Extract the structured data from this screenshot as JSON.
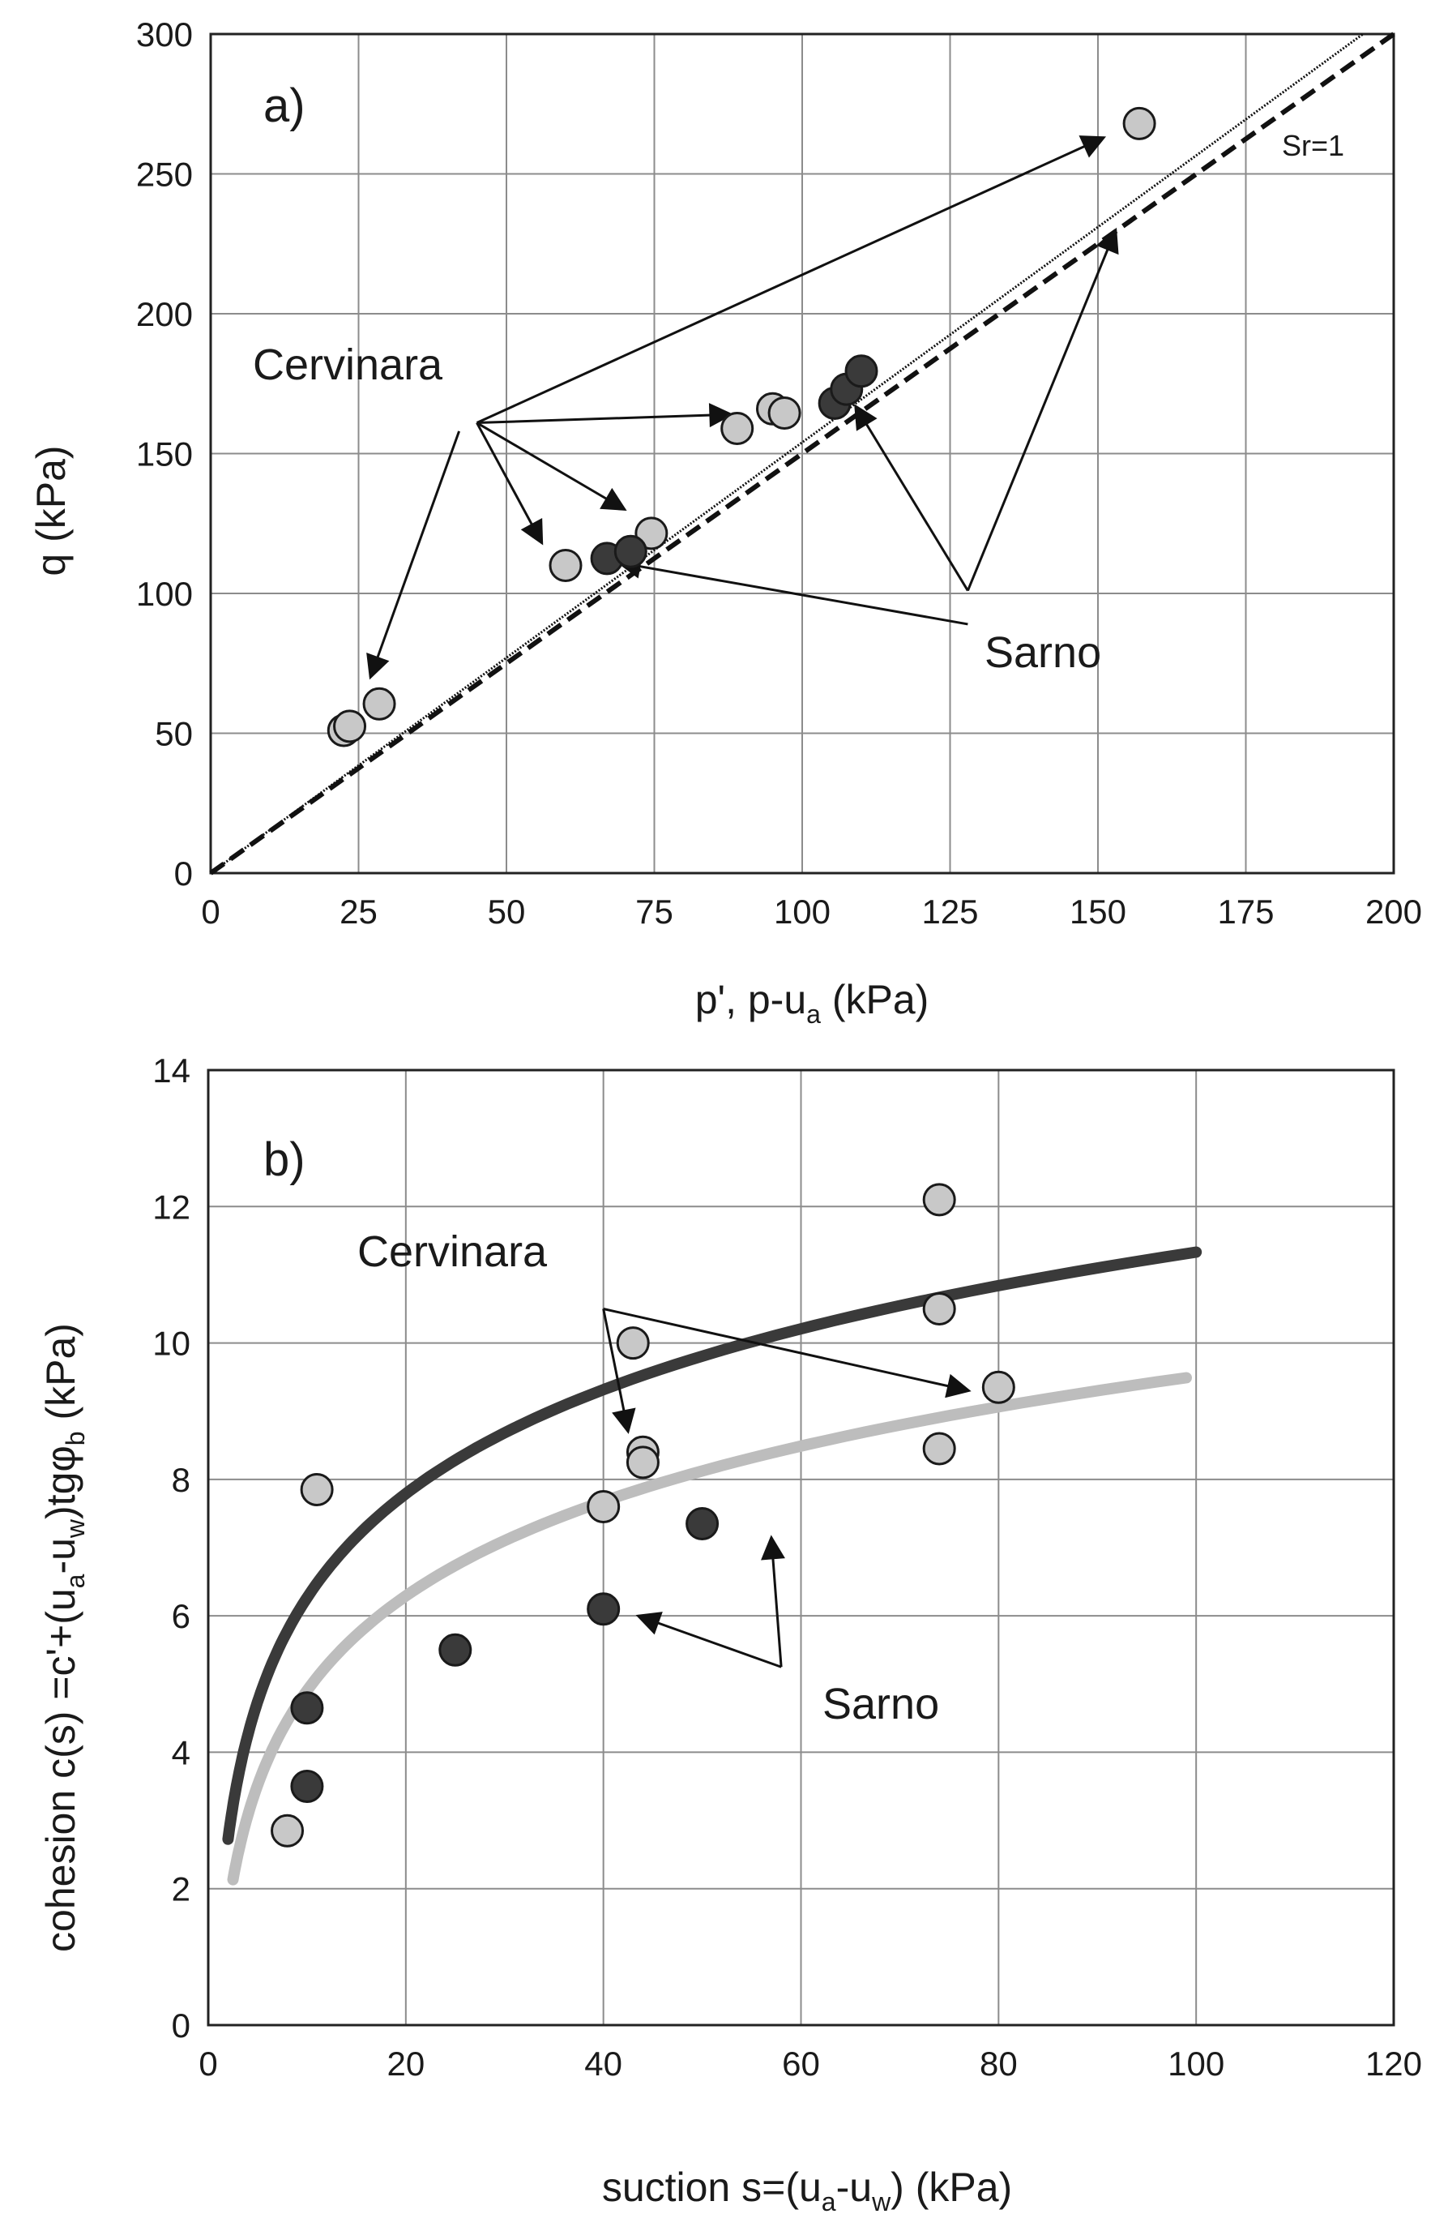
{
  "chart_data": [
    {
      "type": "scatter",
      "panel": "a)",
      "xlabel_main": "p', p-u",
      "xlabel_sub": "a",
      "xlabel_tail": " (kPa)",
      "ylabel": "q (kPa)",
      "xlim": [
        0,
        200
      ],
      "ylim": [
        0,
        300
      ],
      "xticks": [
        0,
        25,
        50,
        75,
        100,
        125,
        150,
        175,
        200
      ],
      "yticks": [
        0,
        50,
        100,
        150,
        200,
        250,
        300
      ],
      "grid": true,
      "series": [
        {
          "name": "Cervinara",
          "color": "#c8c8c8",
          "points": [
            [
              22.5,
              51
            ],
            [
              23.5,
              52.5
            ],
            [
              28.5,
              60.5
            ],
            [
              60,
              110
            ],
            [
              74.5,
              121.5
            ],
            [
              89,
              159
            ],
            [
              95,
              166
            ],
            [
              97,
              164.5
            ],
            [
              157,
              268
            ]
          ]
        },
        {
          "name": "Sarno",
          "color": "#3a3a3a",
          "points": [
            [
              67,
              112.5
            ],
            [
              71,
              115
            ],
            [
              105.5,
              168
            ],
            [
              107.5,
              173
            ],
            [
              110,
              179.5
            ]
          ]
        }
      ],
      "lines": [
        {
          "name": "solid-fit",
          "style": "dotted-thin",
          "x": [
            0,
            200
          ],
          "y": [
            0,
            308
          ]
        },
        {
          "name": "Sr=1",
          "style": "dashed",
          "x": [
            0,
            200
          ],
          "y": [
            0,
            300
          ]
        }
      ],
      "annotations": {
        "cervinara": "Cervinara",
        "sarno": "Sarno",
        "sr": "Sr=1"
      },
      "arrows": [
        {
          "from": [
            45,
            161
          ],
          "to": [
            151,
            263
          ]
        },
        {
          "from": [
            45,
            161
          ],
          "to": [
            88,
            164
          ]
        },
        {
          "from": [
            45,
            161
          ],
          "to": [
            70,
            130
          ]
        },
        {
          "from": [
            45,
            161
          ],
          "to": [
            56,
            118
          ]
        },
        {
          "from": [
            42,
            158
          ],
          "to": [
            27,
            70
          ]
        },
        {
          "from": [
            128,
            101
          ],
          "to": [
            109,
            167
          ]
        },
        {
          "from": [
            128,
            101
          ],
          "to": [
            153,
            230
          ]
        },
        {
          "from": [
            128,
            89
          ],
          "to": [
            69,
            111
          ]
        }
      ]
    },
    {
      "type": "scatter",
      "panel": "b)",
      "xlabel_main": "suction s=(u",
      "xlabel_sub1": "a",
      "xlabel_mid": "-u",
      "xlabel_sub2": "w",
      "xlabel_tail": ") (kPa)",
      "ylabel_parts": [
        "cohesion c(s)  =c'+(u",
        "a",
        "-u",
        "w",
        ")tgφ",
        "b",
        " (kPa)"
      ],
      "xlim": [
        0,
        120
      ],
      "ylim": [
        0,
        14
      ],
      "xticks": [
        0,
        20,
        40,
        60,
        80,
        100,
        120
      ],
      "yticks": [
        0,
        2,
        4,
        6,
        8,
        10,
        12,
        14
      ],
      "grid": true,
      "series": [
        {
          "name": "Cervinara",
          "color": "#c8c8c8",
          "points": [
            [
              8,
              2.85
            ],
            [
              11,
              7.85
            ],
            [
              40,
              7.6
            ],
            [
              43,
              10
            ],
            [
              44,
              8.4
            ],
            [
              44,
              8.25
            ],
            [
              74,
              12.1
            ],
            [
              74,
              10.5
            ],
            [
              74,
              8.45
            ],
            [
              80,
              9.35
            ]
          ]
        },
        {
          "name": "Sarno",
          "color": "#3a3a3a",
          "points": [
            [
              10,
              3.5
            ],
            [
              10,
              4.65
            ],
            [
              25,
              5.5
            ],
            [
              40,
              6.1
            ],
            [
              50,
              7.35
            ]
          ]
        }
      ],
      "curves": [
        {
          "name": "Cervinara-fit",
          "color": "#3a3a3a",
          "a": 1.2,
          "b": 2.2,
          "x0": 2,
          "x1": 100
        },
        {
          "name": "Sarno-fit",
          "color": "#bdbdbd",
          "a": 0.3,
          "b": 2.0,
          "x0": 2.5,
          "x1": 99
        }
      ],
      "annotations": {
        "cervinara": "Cervinara",
        "sarno": "Sarno"
      },
      "arrows": [
        {
          "from": [
            40,
            10.5
          ],
          "to": [
            42.5,
            8.7
          ]
        },
        {
          "from": [
            40,
            10.5
          ],
          "to": [
            77,
            9.3
          ]
        },
        {
          "from": [
            58,
            5.25
          ],
          "to": [
            43.5,
            6.0
          ]
        },
        {
          "from": [
            58,
            5.25
          ],
          "to": [
            57,
            7.15
          ]
        }
      ]
    }
  ]
}
